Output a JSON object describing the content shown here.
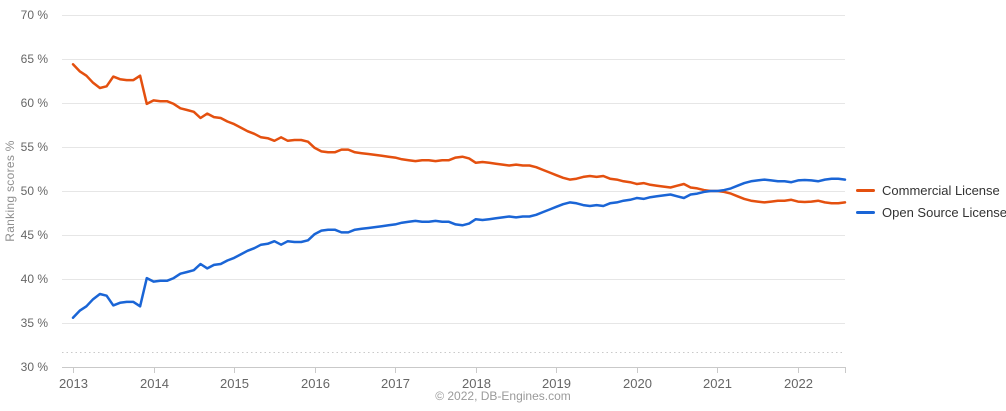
{
  "chart": {
    "y_axis_title": "Ranking scores %",
    "footer_credit": "© 2022, DB-Engines.com",
    "colors": {
      "commercial": "#e4500f",
      "open_source": "#1a65d6",
      "gridline": "#e6e6e6",
      "axis_line": "#c9c9c9",
      "tick_label": "#666666",
      "muted_text": "#9a9a9a",
      "legend_text": "#333333"
    }
  },
  "chart_data": {
    "type": "line",
    "title": "",
    "xlabel": "",
    "ylabel": "Ranking scores %",
    "footer": "© 2022, DB-Engines.com",
    "grid": true,
    "legend_position": "right",
    "ylim": [
      30,
      70
    ],
    "y_tick_values": [
      70,
      65,
      60,
      55,
      50,
      45,
      40,
      35,
      30
    ],
    "y_tick_labels": [
      "70 %",
      "65 %",
      "60 %",
      "55 %",
      "50 %",
      "45 %",
      "40 %",
      "35 %",
      "30 %"
    ],
    "x_tick_labels": [
      "2013",
      "2014",
      "2015",
      "2016",
      "2017",
      "2018",
      "2019",
      "2020",
      "2021",
      "2022"
    ],
    "x_unit": "month",
    "x_range": [
      "2013-01",
      "2022-08"
    ],
    "points_per_year": 12,
    "series": [
      {
        "name": "Commercial License",
        "color": "#e4500f",
        "values": [
          64.4,
          63.6,
          63.1,
          62.3,
          61.7,
          61.9,
          63.0,
          62.7,
          62.6,
          62.6,
          63.1,
          59.9,
          60.3,
          60.2,
          60.2,
          59.9,
          59.4,
          59.2,
          59.0,
          58.3,
          58.8,
          58.4,
          58.3,
          57.9,
          57.6,
          57.2,
          56.8,
          56.5,
          56.1,
          56.0,
          55.7,
          56.1,
          55.7,
          55.8,
          55.8,
          55.6,
          54.9,
          54.5,
          54.4,
          54.4,
          54.7,
          54.7,
          54.4,
          54.3,
          54.2,
          54.1,
          54.0,
          53.9,
          53.8,
          53.6,
          53.5,
          53.4,
          53.5,
          53.5,
          53.4,
          53.5,
          53.5,
          53.8,
          53.9,
          53.7,
          53.2,
          53.3,
          53.2,
          53.1,
          53.0,
          52.9,
          53.0,
          52.9,
          52.9,
          52.7,
          52.4,
          52.1,
          51.8,
          51.5,
          51.3,
          51.4,
          51.6,
          51.7,
          51.6,
          51.7,
          51.4,
          51.3,
          51.1,
          51.0,
          50.8,
          50.9,
          50.7,
          50.6,
          50.5,
          50.4,
          50.6,
          50.8,
          50.4,
          50.3,
          50.1,
          50.0,
          50.0,
          49.9,
          49.7,
          49.4,
          49.1,
          48.9,
          48.8,
          48.7,
          48.8,
          48.9,
          48.9,
          49.0,
          48.8,
          48.75,
          48.8,
          48.9,
          48.7,
          48.6,
          48.6,
          48.7
        ]
      },
      {
        "name": "Open Source License",
        "color": "#1a65d6",
        "values": [
          35.6,
          36.4,
          36.9,
          37.7,
          38.3,
          38.1,
          37.0,
          37.3,
          37.4,
          37.4,
          36.9,
          40.1,
          39.7,
          39.8,
          39.8,
          40.1,
          40.6,
          40.8,
          41.0,
          41.7,
          41.2,
          41.6,
          41.7,
          42.1,
          42.4,
          42.8,
          43.2,
          43.5,
          43.9,
          44.0,
          44.3,
          43.9,
          44.3,
          44.2,
          44.2,
          44.4,
          45.1,
          45.5,
          45.6,
          45.6,
          45.3,
          45.3,
          45.6,
          45.7,
          45.8,
          45.9,
          46.0,
          46.1,
          46.2,
          46.4,
          46.5,
          46.6,
          46.5,
          46.5,
          46.6,
          46.5,
          46.5,
          46.2,
          46.1,
          46.3,
          46.8,
          46.7,
          46.8,
          46.9,
          47.0,
          47.1,
          47.0,
          47.1,
          47.1,
          47.3,
          47.6,
          47.9,
          48.2,
          48.5,
          48.7,
          48.6,
          48.4,
          48.3,
          48.4,
          48.3,
          48.6,
          48.7,
          48.9,
          49.0,
          49.2,
          49.1,
          49.3,
          49.4,
          49.5,
          49.6,
          49.4,
          49.2,
          49.6,
          49.7,
          49.9,
          50.0,
          50.0,
          50.1,
          50.3,
          50.6,
          50.9,
          51.1,
          51.2,
          51.3,
          51.2,
          51.1,
          51.1,
          51.0,
          51.2,
          51.25,
          51.2,
          51.1,
          51.3,
          51.4,
          51.4,
          51.3
        ]
      }
    ]
  }
}
